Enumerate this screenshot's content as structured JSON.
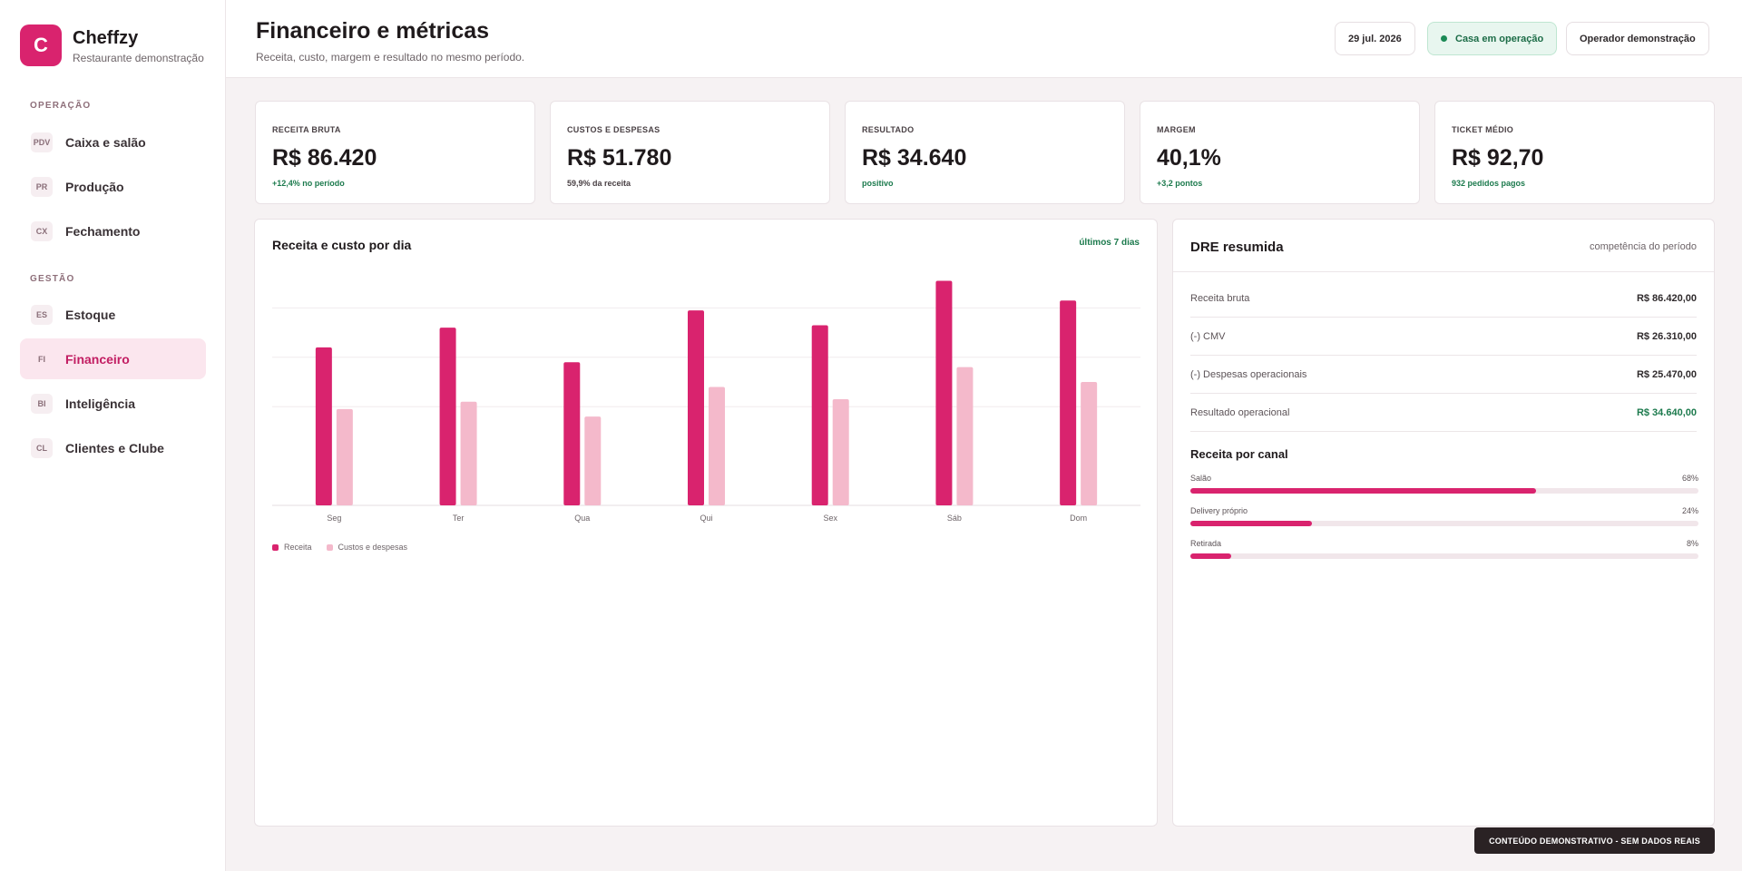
{
  "brand": {
    "logo_letter": "C",
    "name": "Cheffzy",
    "subtitle": "Restaurante demonstração"
  },
  "sidebar": {
    "sections": [
      {
        "title": "OPERAÇÃO",
        "items": [
          {
            "badge": "PDV",
            "label": "Caixa e salão",
            "active": false
          },
          {
            "badge": "PR",
            "label": "Produção",
            "active": false
          },
          {
            "badge": "CX",
            "label": "Fechamento",
            "active": false
          }
        ]
      },
      {
        "title": "GESTÃO",
        "items": [
          {
            "badge": "ES",
            "label": "Estoque",
            "active": false
          },
          {
            "badge": "FI",
            "label": "Financeiro",
            "active": true
          },
          {
            "badge": "BI",
            "label": "Inteligência",
            "active": false
          },
          {
            "badge": "CL",
            "label": "Clientes e Clube",
            "active": false
          }
        ]
      }
    ]
  },
  "header": {
    "title": "Financeiro e métricas",
    "subtitle": "Receita, custo, margem e resultado no mesmo período.",
    "date": "29 jul. 2026",
    "status": "Casa em operação",
    "operator": "Operador demonstração"
  },
  "kpis": [
    {
      "label": "RECEITA BRUTA",
      "value": "R$ 86.420",
      "note": "+12,4% no período",
      "tone": "good"
    },
    {
      "label": "CUSTOS E DESPESAS",
      "value": "R$ 51.780",
      "note": "59,9% da receita",
      "tone": "neutral"
    },
    {
      "label": "RESULTADO",
      "value": "R$ 34.640",
      "note": "positivo",
      "tone": "good"
    },
    {
      "label": "MARGEM",
      "value": "40,1%",
      "note": "+3,2 pontos",
      "tone": "good"
    },
    {
      "label": "TICKET MÉDIO",
      "value": "R$ 92,70",
      "note": "932 pedidos pagos",
      "tone": "good"
    }
  ],
  "chart_card": {
    "title": "Receita e custo por dia",
    "period": "últimos 7 dias"
  },
  "chart_data": {
    "type": "bar",
    "title": "Receita e custo por dia",
    "categories": [
      "Seg",
      "Ter",
      "Qua",
      "Qui",
      "Sex",
      "Sáb",
      "Dom"
    ],
    "series": [
      {
        "name": "Receita",
        "color": "#d9236e",
        "values": [
          64,
          72,
          58,
          79,
          73,
          91,
          83
        ]
      },
      {
        "name": "Custos e despesas",
        "color": "#f4b9cb",
        "values": [
          39,
          42,
          36,
          48,
          43,
          56,
          50
        ]
      }
    ],
    "ylim": [
      0,
      100
    ],
    "grid": true,
    "legend": "bottom-left"
  },
  "dre": {
    "title": "DRE resumida",
    "hint": "competência do período",
    "rows": [
      {
        "label": "Receita bruta",
        "value": "R$ 86.420,00",
        "tone": "neutral"
      },
      {
        "label": "(-) CMV",
        "value": "R$ 26.310,00",
        "tone": "neutral"
      },
      {
        "label": "(-) Despesas operacionais",
        "value": "R$ 25.470,00",
        "tone": "neutral"
      },
      {
        "label": "Resultado operacional",
        "value": "R$ 34.640,00",
        "tone": "good"
      }
    ],
    "channels_title": "Receita por canal",
    "channels": [
      {
        "label": "Salão",
        "pct_text": "68%",
        "pct": 68
      },
      {
        "label": "Delivery próprio",
        "pct_text": "24%",
        "pct": 24
      },
      {
        "label": "Retirada",
        "pct_text": "8%",
        "pct": 8
      }
    ]
  },
  "banner": "CONTEÚDO DEMONSTRATIVO - SEM DADOS REAIS"
}
